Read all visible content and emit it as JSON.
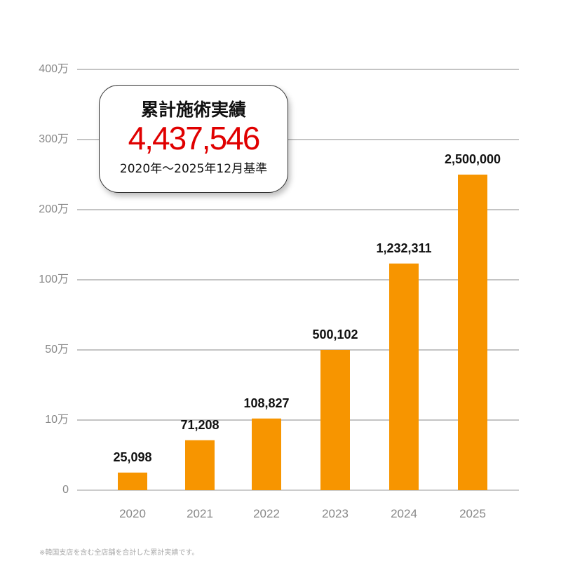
{
  "chart_data": {
    "type": "bar",
    "categories": [
      "2020",
      "2021",
      "2022",
      "2023",
      "2024",
      "2025"
    ],
    "values": [
      25098,
      71208,
      108827,
      500102,
      1232311,
      2500000
    ],
    "data_labels": [
      "25,098",
      "71,208",
      "108,827",
      "500,102",
      "1,232,311",
      "2,500,000"
    ],
    "y_ticks": [
      0,
      100000,
      500000,
      1000000,
      2000000,
      3000000,
      4000000
    ],
    "y_tick_labels": [
      "0",
      "10万",
      "50万",
      "100万",
      "200万",
      "300万",
      "400万"
    ],
    "y_scale": "piecewise (non-linear, equal spacing between ticks)",
    "ylim": [
      0,
      4000000
    ],
    "grid": true,
    "bar_color": "#f79500"
  },
  "callout": {
    "title": "累計施術実績",
    "total": "4,437,546",
    "period": "2020年〜2025年12月基準",
    "total_color": "#e00000"
  },
  "footnote": "※韓国支店を含む全店舗を合計した累計実績です。"
}
